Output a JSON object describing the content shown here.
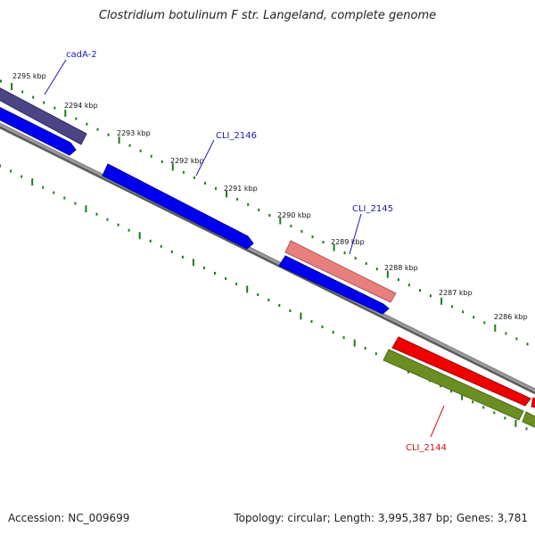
{
  "title": "Clostridium botulinum F str. Langeland, complete genome",
  "accession": "Accession: NC_009699",
  "summary": "Topology: circular; Length: 3,995,387 bp; Genes: 3,781",
  "ticks": [
    "2295 kbp",
    "2294 kbp",
    "2293 kbp",
    "2292 kbp",
    "2291 kbp",
    "2290 kbp",
    "2289 kbp",
    "2288 kbp",
    "2287 kbp",
    "2286 kbp"
  ],
  "gene_labels": [
    {
      "name": "cadA-2",
      "color": "#1a1ab4"
    },
    {
      "name": "CLI_2146",
      "color": "#1a1ab4"
    },
    {
      "name": "CLI_2145",
      "color": "#1a1ab4"
    },
    {
      "name": "CLI_2144",
      "color": "#cc1111"
    }
  ],
  "colors": {
    "tick": "#1f7a1f",
    "backbone": "#888888",
    "cds_blue": "#0000ee",
    "cds_purple": "#4a4585",
    "cds_pink": "#e87f7f",
    "cds_red": "#ee0000",
    "cds_olive": "#6b8e23"
  }
}
